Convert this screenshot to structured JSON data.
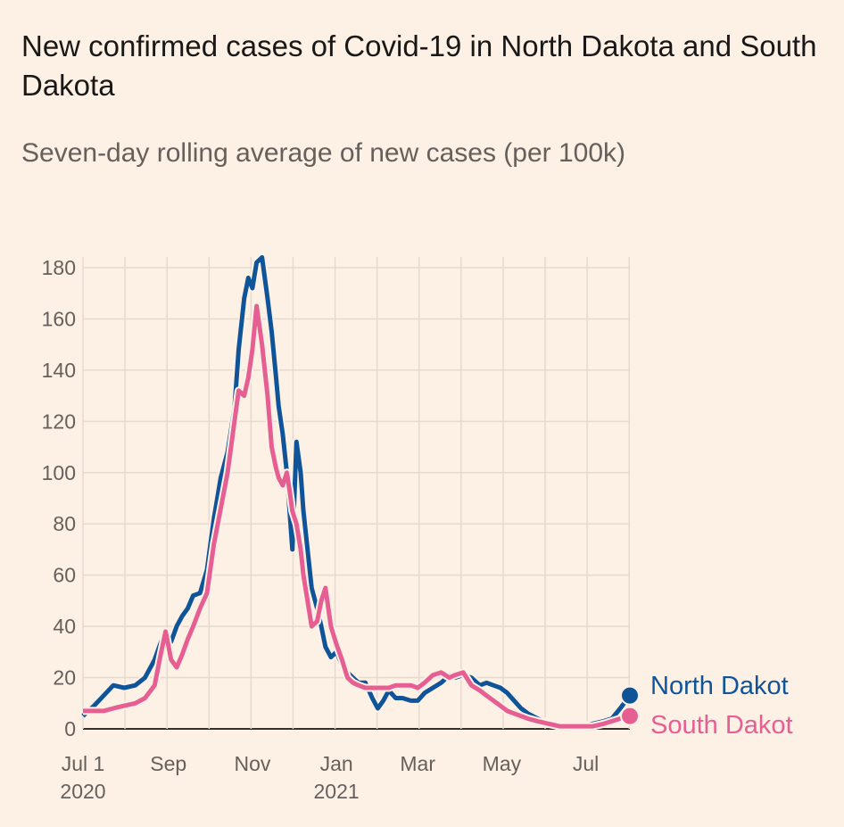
{
  "header": {
    "title": "New confirmed cases of Covid-19 in North Dakota and South Dakota",
    "subtitle": "Seven-day rolling average of new cases (per 100k)"
  },
  "chart_data": {
    "type": "line",
    "title": "New confirmed cases of Covid-19 in North Dakota and South Dakota",
    "subtitle": "Seven-day rolling average of new cases (per 100k)",
    "xlabel": "",
    "ylabel": "",
    "ylim": [
      0,
      180
    ],
    "yticks": [
      "0",
      "20",
      "40",
      "60",
      "80",
      "100",
      "120",
      "140",
      "160",
      "180"
    ],
    "xlim": [
      0,
      397
    ],
    "xticks": [
      {
        "day": 0,
        "label": "Jul 1",
        "year": "2020"
      },
      {
        "day": 62,
        "label": "Sep",
        "year": ""
      },
      {
        "day": 123,
        "label": "Nov",
        "year": ""
      },
      {
        "day": 184,
        "label": "Jan",
        "year": "2021"
      },
      {
        "day": 243,
        "label": "Mar",
        "year": ""
      },
      {
        "day": 304,
        "label": "May",
        "year": ""
      },
      {
        "day": 365,
        "label": "Jul",
        "year": ""
      }
    ],
    "grid": true,
    "legend": "right, end of lines",
    "series": [
      {
        "name": "North Dakota",
        "legend_label": "North Dakot",
        "color": "#0f5499",
        "x": [
          0,
          8,
          15,
          22,
          30,
          38,
          45,
          52,
          56,
          60,
          64,
          68,
          72,
          76,
          80,
          85,
          90,
          95,
          100,
          105,
          110,
          113,
          117,
          120,
          123,
          126,
          130,
          134,
          137,
          140,
          142,
          145,
          148,
          150,
          152,
          155,
          158,
          160,
          163,
          166,
          170,
          173,
          176,
          180,
          184,
          188,
          192,
          196,
          200,
          205,
          210,
          214,
          218,
          222,
          227,
          232,
          238,
          243,
          248,
          254,
          260,
          266,
          270,
          276,
          282,
          288,
          293,
          298,
          303,
          308,
          313,
          318,
          323,
          330,
          338,
          346,
          354,
          362,
          370,
          378,
          384,
          390,
          397
        ],
        "y": [
          5,
          9,
          13,
          17,
          16,
          17,
          20,
          27,
          33,
          38,
          34,
          40,
          44,
          47,
          52,
          53,
          62,
          82,
          98,
          108,
          125,
          148,
          168,
          176,
          172,
          182,
          184,
          168,
          155,
          138,
          126,
          115,
          100,
          85,
          70,
          112,
          100,
          85,
          70,
          55,
          47,
          40,
          32,
          28,
          30,
          25,
          22,
          20,
          18,
          18,
          12,
          8,
          11,
          15,
          12,
          12,
          11,
          11,
          14,
          16,
          18,
          21,
          20,
          21,
          20,
          17,
          18,
          17,
          16,
          14,
          11,
          8,
          6,
          4,
          2,
          1,
          1,
          1,
          2,
          3,
          4,
          8,
          13
        ]
      },
      {
        "name": "South Dakota",
        "legend_label": "South Dakot",
        "color": "#e55f93",
        "x": [
          0,
          8,
          15,
          22,
          30,
          38,
          45,
          52,
          56,
          60,
          64,
          68,
          72,
          76,
          80,
          85,
          90,
          95,
          100,
          105,
          110,
          113,
          117,
          120,
          123,
          126,
          130,
          134,
          137,
          140,
          142,
          145,
          148,
          150,
          152,
          155,
          158,
          160,
          163,
          166,
          170,
          173,
          176,
          180,
          184,
          188,
          192,
          196,
          200,
          205,
          210,
          214,
          218,
          222,
          227,
          232,
          238,
          243,
          248,
          254,
          260,
          266,
          270,
          276,
          282,
          288,
          293,
          298,
          303,
          308,
          313,
          318,
          323,
          330,
          338,
          346,
          354,
          362,
          370,
          378,
          384,
          390,
          397
        ],
        "y": [
          7,
          7,
          7,
          8,
          9,
          10,
          12,
          17,
          28,
          38,
          27,
          24,
          29,
          35,
          40,
          47,
          53,
          72,
          86,
          100,
          120,
          132,
          130,
          137,
          148,
          165,
          150,
          130,
          110,
          102,
          98,
          95,
          100,
          93,
          85,
          80,
          70,
          60,
          50,
          40,
          42,
          50,
          55,
          40,
          33,
          27,
          20,
          18,
          17,
          16,
          16,
          16,
          16,
          16,
          17,
          17,
          17,
          16,
          18,
          21,
          22,
          20,
          21,
          22,
          17,
          15,
          13,
          11,
          9,
          7,
          6,
          5,
          4,
          3,
          2,
          1,
          1,
          1,
          1,
          2,
          3,
          4,
          5
        ]
      }
    ]
  }
}
